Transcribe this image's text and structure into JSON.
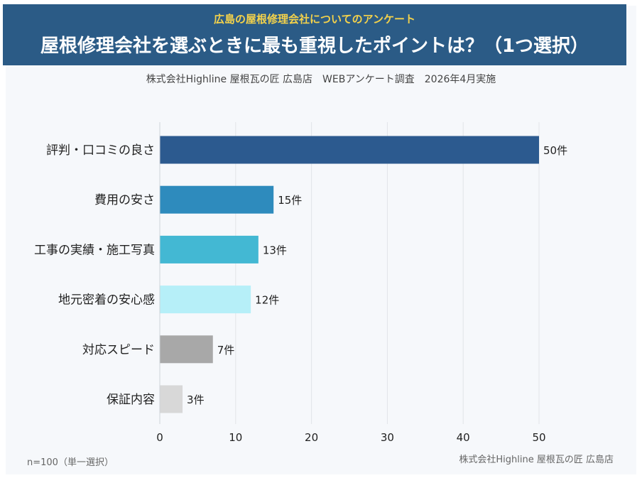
{
  "header": {
    "kicker": "広島の屋根修理会社についてのアンケート",
    "title": "屋根修理会社を選ぶときに最も重視したポイントは？（1つ選択）"
  },
  "subtitle": "株式会社Highline 屋根瓦の匠 広島店　WEBアンケート調査　2026年4月実施",
  "footer": {
    "sample_note": "n=100（単一選択）",
    "credit": "株式会社Highline 屋根瓦の匠 広島店"
  },
  "chart_data": {
    "type": "bar",
    "orientation": "horizontal",
    "categories": [
      "評判・口コミの良さ",
      "費用の安さ",
      "工事の実績・施工写真",
      "地元密着の安心感",
      "対応スピード",
      "保証内容"
    ],
    "values": [
      50,
      15,
      13,
      12,
      7,
      3
    ],
    "value_labels": [
      "50件",
      "15件",
      "13件",
      "12件",
      "7件",
      "3件"
    ],
    "colors": [
      "#2c5a8f",
      "#2e8bbd",
      "#43b8d3",
      "#b6eff8",
      "#a8a8a8",
      "#d8d8d8"
    ],
    "xlim": [
      0,
      60
    ],
    "xticks": [
      0,
      10,
      20,
      30,
      40,
      50
    ],
    "grid": "vertical"
  }
}
